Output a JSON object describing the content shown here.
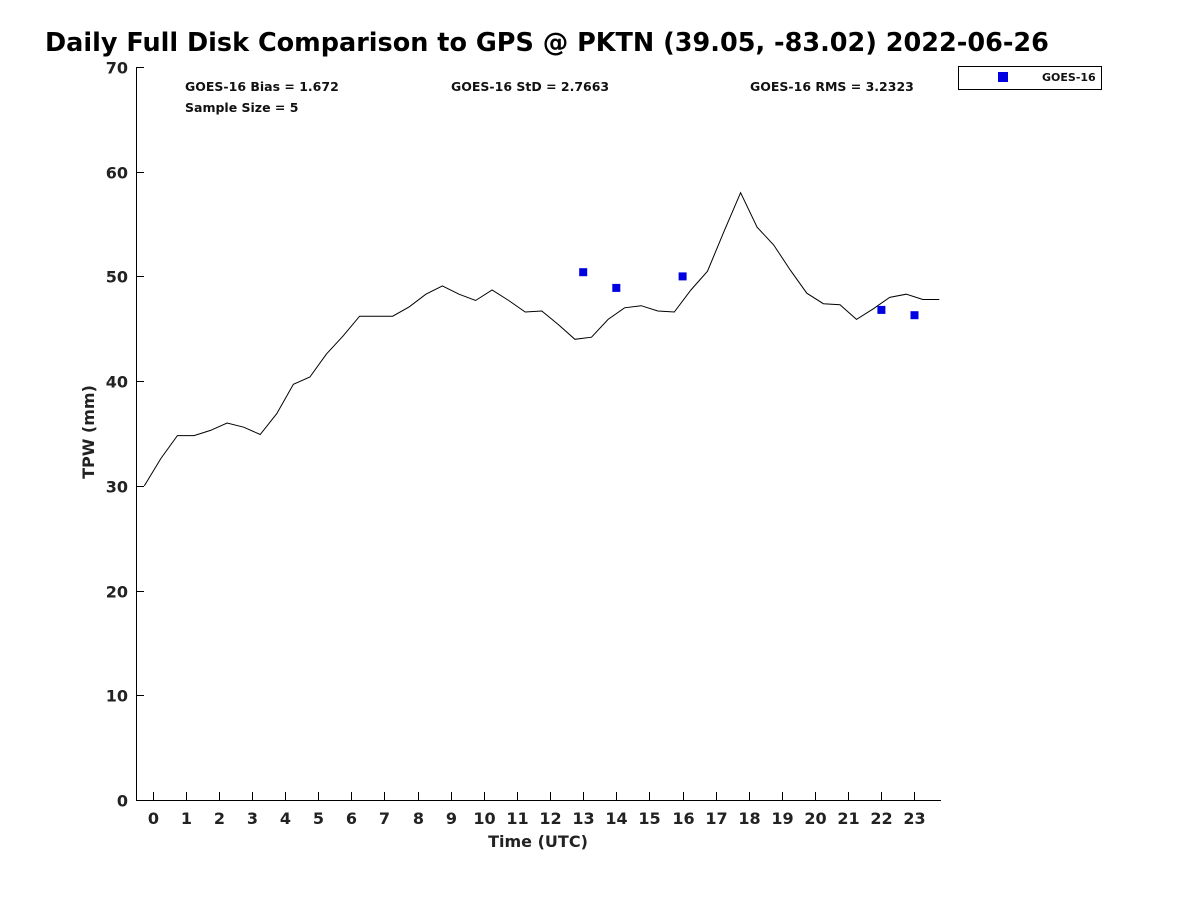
{
  "chart_data": {
    "type": "scatter",
    "title": "Daily Full Disk Comparison to GPS @ PKTN (39.05, -83.02) 2022-06-26",
    "xlabel": "Time (UTC)",
    "ylabel": "TPW (mm)",
    "xlim": [
      -0.5,
      23.8
    ],
    "ylim": [
      0,
      70
    ],
    "x_ticks": [
      0,
      1,
      2,
      3,
      4,
      5,
      6,
      7,
      8,
      9,
      10,
      11,
      12,
      13,
      14,
      15,
      16,
      17,
      18,
      19,
      20,
      21,
      22,
      23
    ],
    "y_ticks": [
      0,
      10,
      20,
      30,
      40,
      50,
      60,
      70
    ],
    "grid": false,
    "legend_position": "outside-top-right",
    "stats": [
      {
        "name": "bias",
        "text": "GOES-16 Bias = 1.672"
      },
      {
        "name": "std",
        "text": "GOES-16 StD = 2.7663"
      },
      {
        "name": "rms",
        "text": "GOES-16 RMS = 3.2323"
      },
      {
        "name": "sample-size",
        "text": "Sample Size = 5"
      }
    ],
    "series": [
      {
        "kind": "line",
        "color": "#000000",
        "x": [
          -0.25,
          0.25,
          0.75,
          1.25,
          1.75,
          2.25,
          2.75,
          3.25,
          3.75,
          4.25,
          4.75,
          5.25,
          5.75,
          6.25,
          6.75,
          7.25,
          7.75,
          8.25,
          8.75,
          9.25,
          9.75,
          10.25,
          10.75,
          11.25,
          11.75,
          12.25,
          12.75,
          13.25,
          13.75,
          14.25,
          14.75,
          15.25,
          15.75,
          16.25,
          16.75,
          17.25,
          17.75,
          18.25,
          18.75,
          19.25,
          19.75,
          20.25,
          20.75,
          21.25,
          21.75,
          22.25,
          22.75,
          23.25,
          23.75
        ],
        "y": [
          30.0,
          32.6,
          34.8,
          34.8,
          35.3,
          36.0,
          35.6,
          34.9,
          36.9,
          39.7,
          40.4,
          42.6,
          44.3,
          46.2,
          46.2,
          46.2,
          47.1,
          48.3,
          49.1,
          48.3,
          47.7,
          48.7,
          47.7,
          46.6,
          46.7,
          45.4,
          44.0,
          44.2,
          45.9,
          47.0,
          47.2,
          46.7,
          46.6,
          48.7,
          50.5,
          54.3,
          58.0,
          54.7,
          53.0,
          50.6,
          48.4,
          47.4,
          47.3,
          45.9,
          46.9,
          48.0,
          48.3,
          47.8,
          47.8
        ]
      },
      {
        "kind": "scatter",
        "name": "GOES-16",
        "color": "#0000e0",
        "x": [
          13,
          14,
          16,
          22,
          23
        ],
        "y": [
          50.4,
          48.9,
          50.0,
          46.8,
          46.3
        ]
      }
    ]
  }
}
